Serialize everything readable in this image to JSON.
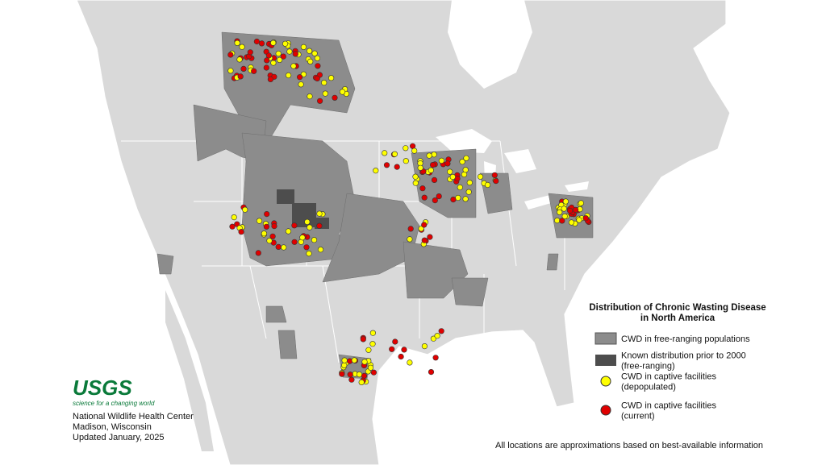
{
  "legend": {
    "title": [
      "Distribution of Chronic Wasting Disease",
      "in North America"
    ],
    "items": [
      {
        "label": [
          "CWD in free-ranging populations"
        ]
      },
      {
        "label": [
          "Known distribution prior to 2000",
          "(free-ranging)"
        ]
      },
      {
        "label": [
          "CWD in captive facilities",
          "(depopulated)"
        ]
      },
      {
        "label": [
          "CWD in captive facilities",
          "(current)"
        ]
      }
    ]
  },
  "logo": {
    "name": "USGS",
    "tagline": "science for a changing world"
  },
  "credits": [
    "National Wildlife Health Center",
    "Madison, Wisconsin",
    "Updated January, 2025"
  ],
  "note": "All locations are approximations based on best-available information"
}
